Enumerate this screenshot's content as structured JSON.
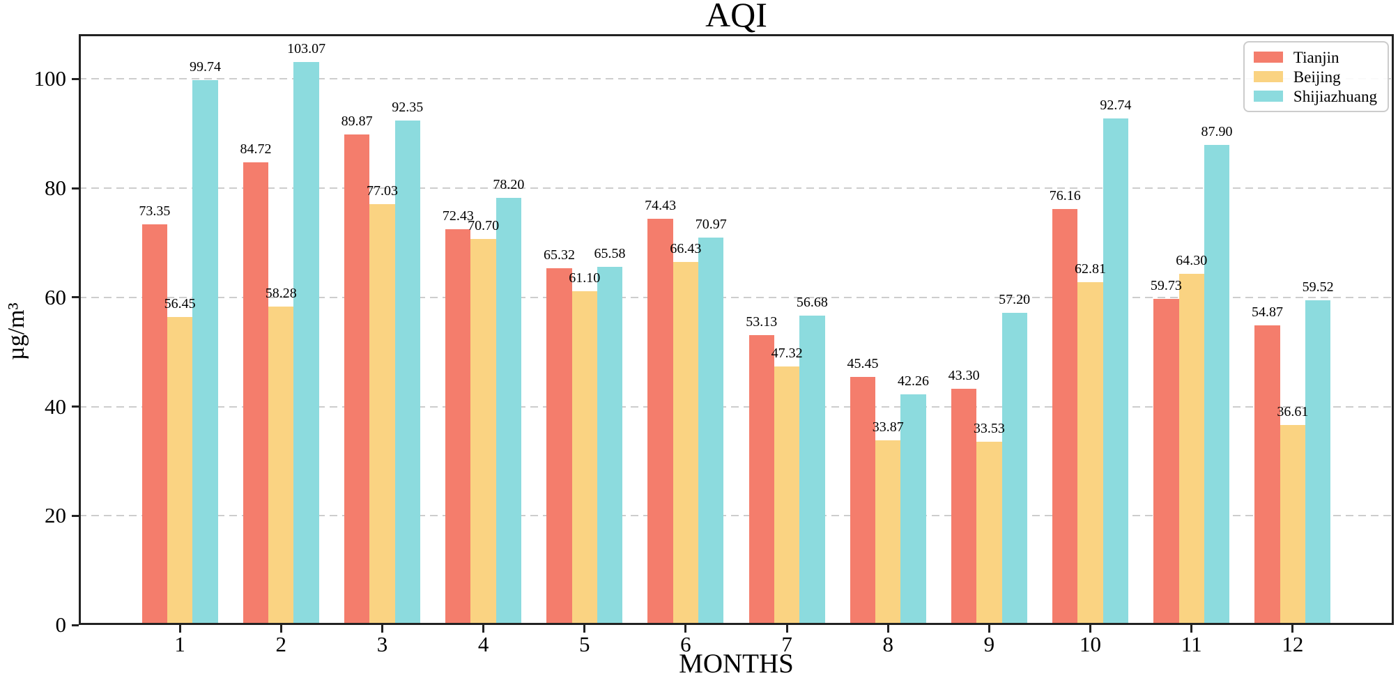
{
  "chart_data": {
    "type": "bar",
    "title": "AQI",
    "xlabel": "MONTHS",
    "ylabel": "µg/m³",
    "categories": [
      "1",
      "2",
      "3",
      "4",
      "5",
      "6",
      "7",
      "8",
      "9",
      "10",
      "11",
      "12"
    ],
    "series": [
      {
        "name": "Tianjin",
        "color": "#F47D6C",
        "values": [
          73.35,
          84.72,
          89.87,
          72.43,
          65.32,
          74.43,
          53.13,
          45.45,
          43.3,
          76.16,
          59.73,
          54.87
        ]
      },
      {
        "name": "Beijing",
        "color": "#FAD382",
        "values": [
          56.45,
          58.28,
          77.03,
          70.7,
          61.1,
          66.43,
          47.32,
          33.87,
          33.53,
          62.81,
          64.3,
          36.61
        ]
      },
      {
        "name": "Shijiazhuang",
        "color": "#8CDBDE",
        "values": [
          99.74,
          103.07,
          92.35,
          78.2,
          65.58,
          70.97,
          56.68,
          42.26,
          57.2,
          92.74,
          87.9,
          59.52
        ]
      }
    ],
    "ylim": [
      0,
      108.2
    ],
    "yticks": [
      0,
      20,
      40,
      60,
      80,
      100
    ],
    "grid": "horizontal-dashed",
    "grid_color": "#cdcdcd",
    "spine_color": "#222222",
    "legend_position": "upper-right",
    "value_label_decimals": 2
  }
}
